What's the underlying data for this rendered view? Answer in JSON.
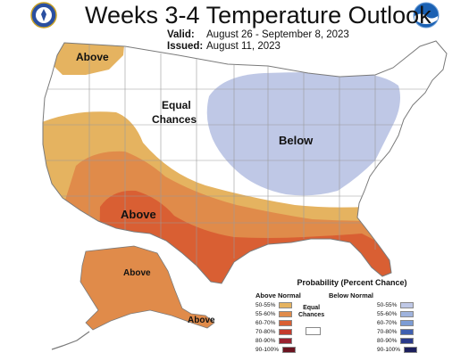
{
  "header": {
    "title": "Weeks 3-4 Temperature Outlook",
    "valid_label": "Valid:",
    "valid_value": "August 26 - September 8, 2023",
    "issued_label": "Issued:",
    "issued_value": "August 11, 2023"
  },
  "logos": {
    "left": "noaa-nws-seal-icon",
    "right": "noaa-logo-icon"
  },
  "map_labels": {
    "northwest_above": "Above",
    "equal_chances_1": "Equal",
    "equal_chances_2": "Chances",
    "central_below": "Below",
    "southwest_above": "Above",
    "alaska_above": "Above",
    "aleutian_above": "Above"
  },
  "legend": {
    "title": "Probability (Percent Chance)",
    "above_header": "Above Normal",
    "below_header": "Below Normal",
    "equal_chances_1": "Equal",
    "equal_chances_2": "Chances",
    "above_items": [
      {
        "label": "50-55%",
        "color": "#e5b360"
      },
      {
        "label": "55-60%",
        "color": "#e08b4a"
      },
      {
        "label": "60-70%",
        "color": "#d95f33"
      },
      {
        "label": "70-80%",
        "color": "#c43a2c"
      },
      {
        "label": "80-90%",
        "color": "#9a2130"
      },
      {
        "label": "90-100%",
        "color": "#6b1420"
      }
    ],
    "below_items": [
      {
        "label": "50-55%",
        "color": "#bfc8e6"
      },
      {
        "label": "55-60%",
        "color": "#9fb3dd"
      },
      {
        "label": "60-70%",
        "color": "#7c9cd4"
      },
      {
        "label": "70-80%",
        "color": "#3f5fb0"
      },
      {
        "label": "80-90%",
        "color": "#2a3a8a"
      },
      {
        "label": "90-100%",
        "color": "#1c1f5c"
      }
    ]
  },
  "colors": {
    "above_50_55": "#e5b360",
    "above_55_60": "#e08b4a",
    "above_60_70": "#d95f33",
    "below_50_55": "#bfc8e6",
    "equal_chances": "#ffffff",
    "border": "#9a9a9a"
  }
}
